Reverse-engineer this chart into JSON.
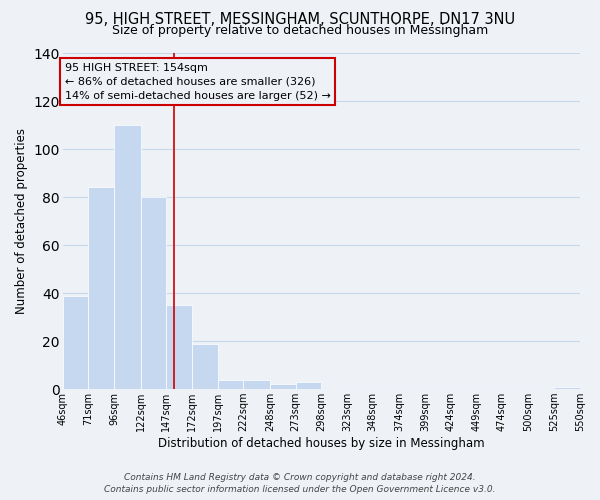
{
  "title": "95, HIGH STREET, MESSINGHAM, SCUNTHORPE, DN17 3NU",
  "subtitle": "Size of property relative to detached houses in Messingham",
  "xlabel": "Distribution of detached houses by size in Messingham",
  "ylabel": "Number of detached properties",
  "bar_edges": [
    46,
    71,
    96,
    122,
    147,
    172,
    197,
    222,
    248,
    273,
    298,
    323,
    348,
    374,
    399,
    424,
    449,
    474,
    500,
    525,
    550
  ],
  "bar_heights": [
    39,
    84,
    110,
    80,
    35,
    19,
    4,
    4,
    2,
    3,
    0,
    0,
    0,
    0,
    0,
    0,
    0,
    0,
    0,
    1
  ],
  "bar_color": "#c5d8f0",
  "bar_edge_color": "#ffffff",
  "grid_color": "#c8d8e8",
  "annotation_line1": "95 HIGH STREET: 154sqm",
  "annotation_line2": "← 86% of detached houses are smaller (326)",
  "annotation_line3": "14% of semi-detached houses are larger (52) →",
  "annotation_box_edge_color": "#cc0000",
  "vline_x": 154,
  "vline_color": "#cc0000",
  "ylim": [
    0,
    140
  ],
  "tick_labels": [
    "46sqm",
    "71sqm",
    "96sqm",
    "122sqm",
    "147sqm",
    "172sqm",
    "197sqm",
    "222sqm",
    "248sqm",
    "273sqm",
    "298sqm",
    "323sqm",
    "348sqm",
    "374sqm",
    "399sqm",
    "424sqm",
    "449sqm",
    "474sqm",
    "500sqm",
    "525sqm",
    "550sqm"
  ],
  "footer_line1": "Contains HM Land Registry data © Crown copyright and database right 2024.",
  "footer_line2": "Contains public sector information licensed under the Open Government Licence v3.0.",
  "bg_color": "#eef2f7",
  "title_fontsize": 10.5,
  "subtitle_fontsize": 9,
  "axis_label_fontsize": 8.5,
  "tick_fontsize": 7,
  "annotation_fontsize": 8,
  "footer_fontsize": 6.5
}
